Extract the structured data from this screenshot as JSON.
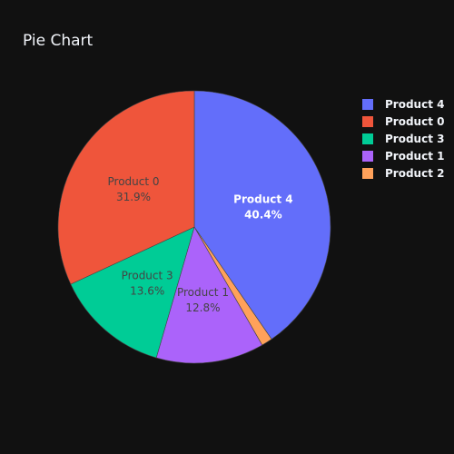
{
  "chart_data": {
    "type": "pie",
    "title": "Pie Chart",
    "slices": [
      {
        "label": "Product 4",
        "value": 40.4,
        "pct_text": "40.4%",
        "color": "#636efa",
        "text_color": "#ffffff",
        "bold": true
      },
      {
        "label": "Product 2",
        "value": 1.3,
        "pct_text": "",
        "color": "#ffa15a",
        "text_color": "#444444",
        "bold": false
      },
      {
        "label": "Product 1",
        "value": 12.8,
        "pct_text": "12.8%",
        "color": "#ab63fa",
        "text_color": "#444444",
        "bold": false
      },
      {
        "label": "Product 3",
        "value": 13.6,
        "pct_text": "13.6%",
        "color": "#00cc96",
        "text_color": "#444444",
        "bold": false
      },
      {
        "label": "Product 0",
        "value": 31.9,
        "pct_text": "31.9%",
        "color": "#ef553b",
        "text_color": "#444444",
        "bold": false
      }
    ],
    "legend": {
      "placement": "top-right",
      "items": [
        {
          "label": "Product 4",
          "color": "#636efa"
        },
        {
          "label": "Product 0",
          "color": "#ef553b"
        },
        {
          "label": "Product 3",
          "color": "#00cc96"
        },
        {
          "label": "Product 1",
          "color": "#ab63fa"
        },
        {
          "label": "Product 2",
          "color": "#ffa15a"
        }
      ]
    },
    "background": "#111111"
  }
}
